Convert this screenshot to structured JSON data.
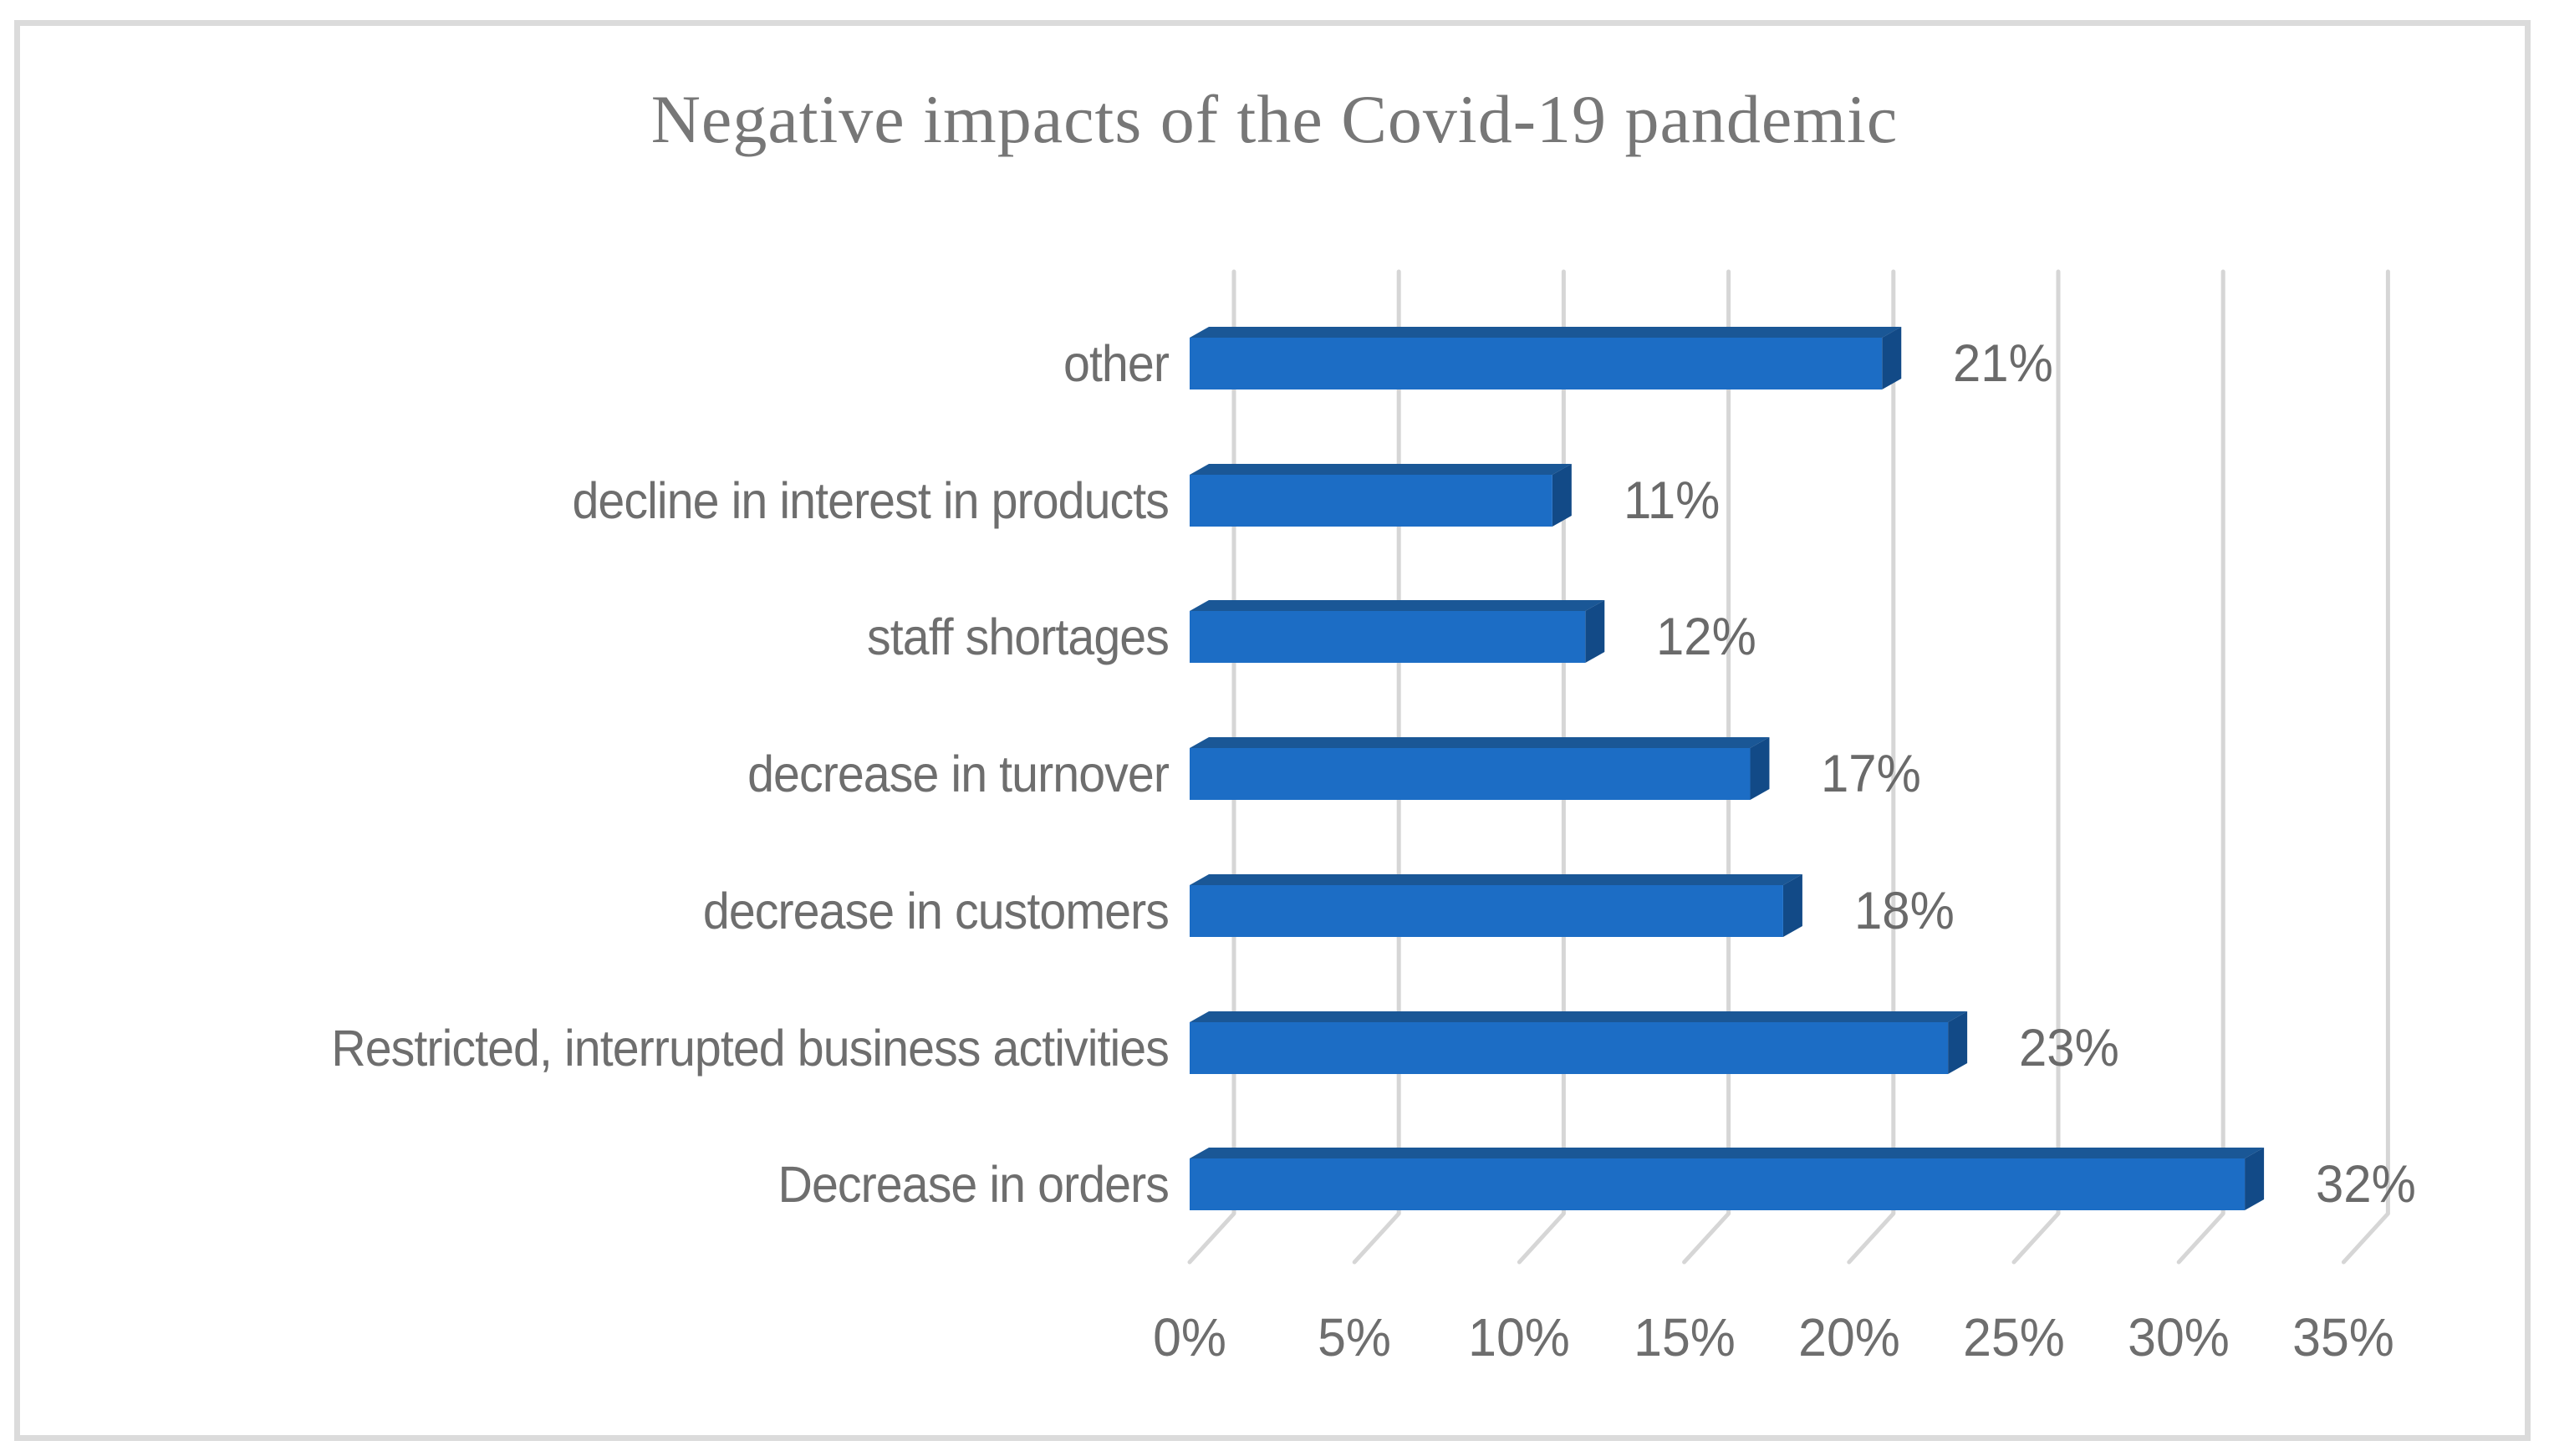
{
  "chart_data": {
    "type": "bar",
    "orientation": "horizontal",
    "style": "3d",
    "title": "Negative impacts of the Covid-19 pandemic",
    "categories": [
      "other",
      "decline in interest in products",
      "staff shortages",
      "decrease in turnover",
      "decrease in customers",
      "Restricted, interrupted business activities",
      "Decrease in orders"
    ],
    "values": [
      21,
      11,
      12,
      17,
      18,
      23,
      32
    ],
    "value_labels": [
      "21%",
      "11%",
      "12%",
      "17%",
      "18%",
      "23%",
      "32%"
    ],
    "x_ticks": [
      "0%",
      "5%",
      "10%",
      "15%",
      "20%",
      "25%",
      "30%",
      "35%"
    ],
    "x_tick_values": [
      0,
      5,
      10,
      15,
      20,
      25,
      30,
      35
    ],
    "xlim": [
      0,
      35
    ],
    "xlabel": "",
    "ylabel": "",
    "grid": true,
    "legend": false,
    "colors": {
      "bar_front": "#1C6DC5",
      "bar_top": "#1A5796",
      "bar_side": "#124A87",
      "gridline": "#D6D6D6",
      "label_text": "#6E6E6E",
      "title_text": "#777777",
      "frame_border": "#DBDBDB",
      "background": "#FFFFFF"
    }
  }
}
